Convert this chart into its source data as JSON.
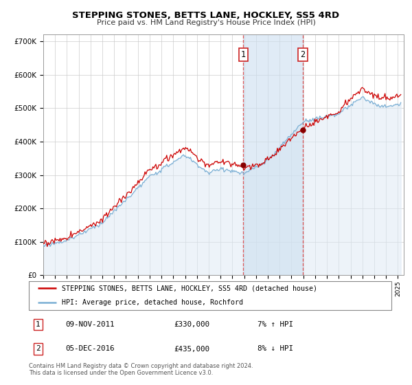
{
  "title": "STEPPING STONES, BETTS LANE, HOCKLEY, SS5 4RD",
  "subtitle": "Price paid vs. HM Land Registry's House Price Index (HPI)",
  "ylim": [
    0,
    720000
  ],
  "xlim_start": 1995.0,
  "xlim_end": 2025.5,
  "background_color": "#ffffff",
  "grid_color": "#cccccc",
  "hpi_line_color": "#7bafd4",
  "hpi_fill_color": "#dce9f5",
  "property_line_color": "#cc0000",
  "marker1_date_x": 2011.92,
  "marker2_date_x": 2016.96,
  "marker1_price": 330000,
  "marker2_price": 435000,
  "legend_property": "STEPPING STONES, BETTS LANE, HOCKLEY, SS5 4RD (detached house)",
  "legend_hpi": "HPI: Average price, detached house, Rochford",
  "table_row1": [
    "1",
    "09-NOV-2011",
    "£330,000",
    "7% ↑ HPI"
  ],
  "table_row2": [
    "2",
    "05-DEC-2016",
    "£435,000",
    "8% ↓ HPI"
  ],
  "footnote": "Contains HM Land Registry data © Crown copyright and database right 2024.\nThis data is licensed under the Open Government Licence v3.0."
}
